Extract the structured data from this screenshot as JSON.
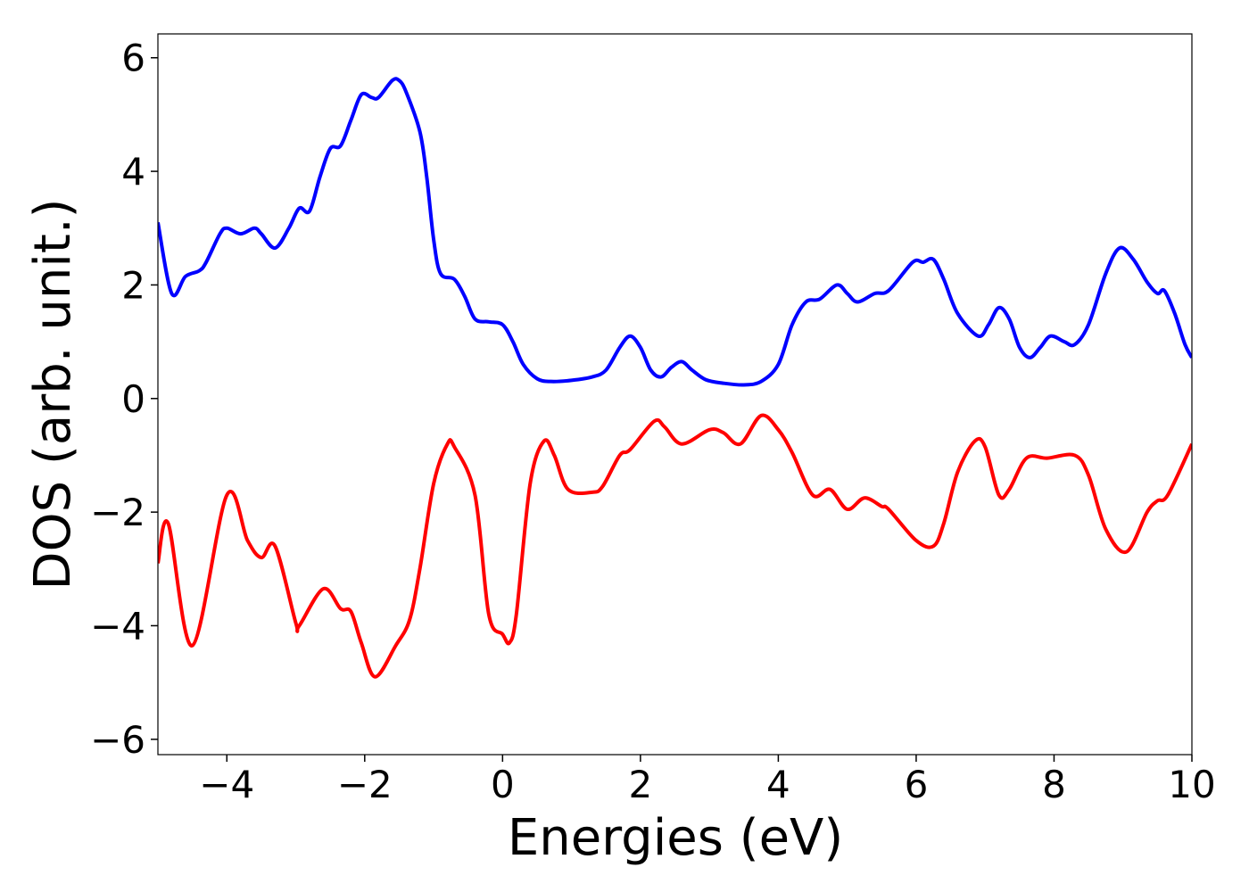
{
  "chart_data": {
    "type": "line",
    "xlabel": "Energies (eV)",
    "ylabel": "DOS (arb. unit.)",
    "xlim": [
      -5,
      10
    ],
    "ylim": [
      -6.27,
      6.42
    ],
    "xticks": [
      {
        "value": -4,
        "label": "−4"
      },
      {
        "value": -2,
        "label": "−2"
      },
      0,
      2,
      4,
      6,
      8,
      10
    ],
    "yticks": [
      {
        "value": -6,
        "label": "−6"
      },
      {
        "value": -4,
        "label": "−4"
      },
      {
        "value": -2,
        "label": "−2"
      },
      0,
      2,
      4,
      6
    ],
    "series": [
      {
        "color": "#0000ff",
        "x": [
          -5,
          -4.8,
          -4.6,
          -4.4,
          -4.3,
          -4.1,
          -4.0,
          -3.8,
          -3.6,
          -3.5,
          -3.3,
          -3.1,
          -2.95,
          -2.8,
          -2.65,
          -2.5,
          -2.35,
          -2.2,
          -2.05,
          -1.9,
          -1.8,
          -1.6,
          -1.5,
          -1.4,
          -1.2,
          -1.1,
          -1.0,
          -0.9,
          -0.7,
          -0.55,
          -0.4,
          -0.2,
          0.0,
          0.15,
          0.3,
          0.5,
          0.7,
          1.0,
          1.3,
          1.5,
          1.7,
          1.85,
          2.0,
          2.15,
          2.3,
          2.45,
          2.6,
          2.75,
          2.95,
          3.2,
          3.5,
          3.75,
          4.0,
          4.2,
          4.4,
          4.6,
          4.85,
          5.0,
          5.15,
          5.4,
          5.6,
          5.95,
          6.1,
          6.25,
          6.4,
          6.6,
          6.9,
          7.05,
          7.2,
          7.35,
          7.5,
          7.65,
          7.8,
          7.95,
          8.15,
          8.3,
          8.5,
          8.75,
          8.95,
          9.15,
          9.35,
          9.5,
          9.6,
          9.75,
          9.9,
          10
        ],
        "values": [
          3.1,
          1.85,
          2.15,
          2.25,
          2.4,
          2.9,
          3.0,
          2.9,
          3.0,
          2.9,
          2.65,
          3.0,
          3.35,
          3.3,
          3.9,
          4.4,
          4.45,
          4.9,
          5.35,
          5.3,
          5.3,
          5.6,
          5.6,
          5.4,
          4.7,
          3.9,
          2.8,
          2.2,
          2.1,
          1.8,
          1.4,
          1.35,
          1.3,
          1.0,
          0.6,
          0.35,
          0.3,
          0.32,
          0.38,
          0.5,
          0.9,
          1.1,
          0.9,
          0.5,
          0.38,
          0.55,
          0.65,
          0.5,
          0.33,
          0.27,
          0.24,
          0.3,
          0.6,
          1.3,
          1.7,
          1.75,
          2.0,
          1.85,
          1.7,
          1.85,
          1.9,
          2.4,
          2.4,
          2.45,
          2.1,
          1.5,
          1.1,
          1.3,
          1.6,
          1.4,
          0.9,
          0.72,
          0.9,
          1.1,
          1.0,
          0.95,
          1.3,
          2.2,
          2.65,
          2.45,
          2.05,
          1.85,
          1.9,
          1.5,
          0.95,
          0.72
        ]
      },
      {
        "color": "#ff0000",
        "x": [
          -5,
          -4.85,
          -4.5,
          -4.0,
          -3.7,
          -3.5,
          -3.3,
          -3.0,
          -2.95,
          -2.6,
          -2.35,
          -2.2,
          -2.05,
          -1.85,
          -1.55,
          -1.35,
          -1.2,
          -1.0,
          -0.8,
          -0.7,
          -0.4,
          -0.2,
          0.0,
          0.1,
          0.2,
          0.4,
          0.6,
          0.75,
          0.95,
          1.3,
          1.45,
          1.7,
          1.85,
          2.2,
          2.35,
          2.6,
          3.0,
          3.2,
          3.45,
          3.75,
          4.0,
          4.2,
          4.5,
          4.75,
          5.0,
          5.25,
          5.5,
          5.6,
          6.0,
          6.25,
          6.4,
          6.6,
          6.85,
          7.0,
          7.2,
          7.35,
          7.6,
          7.9,
          8.3,
          8.5,
          8.75,
          9.05,
          9.35,
          9.5,
          9.65,
          10
        ],
        "values": [
          -2.9,
          -2.2,
          -4.35,
          -1.7,
          -2.5,
          -2.8,
          -2.6,
          -3.95,
          -4.0,
          -3.35,
          -3.7,
          -3.75,
          -4.3,
          -4.9,
          -4.35,
          -3.9,
          -3.0,
          -1.5,
          -0.8,
          -0.85,
          -1.7,
          -3.8,
          -4.15,
          -4.3,
          -3.8,
          -1.5,
          -0.75,
          -1.0,
          -1.6,
          -1.65,
          -1.55,
          -1.0,
          -0.9,
          -0.4,
          -0.5,
          -0.8,
          -0.55,
          -0.6,
          -0.8,
          -0.3,
          -0.55,
          -0.95,
          -1.7,
          -1.6,
          -1.95,
          -1.75,
          -1.9,
          -1.95,
          -2.5,
          -2.6,
          -2.2,
          -1.3,
          -0.75,
          -0.85,
          -1.7,
          -1.6,
          -1.05,
          -1.05,
          -1.0,
          -1.35,
          -2.3,
          -2.7,
          -2.0,
          -1.8,
          -1.7,
          -0.8
        ]
      }
    ]
  }
}
